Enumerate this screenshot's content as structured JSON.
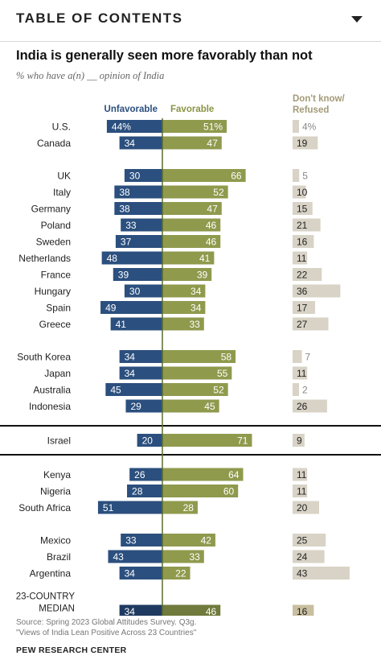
{
  "header": {
    "toc_label": "TABLE OF CONTENTS",
    "toc_icon": "caret-down-icon"
  },
  "chart_data": {
    "type": "bar",
    "title": "India is generally seen more favorably than not",
    "subtitle": "% who have a(n) __ opinion of India",
    "series": [
      {
        "name": "Unfavorable",
        "color": "#2b4f7e"
      },
      {
        "name": "Favorable",
        "color": "#8f9a4d"
      },
      {
        "name": "Don't know/ Refused",
        "color": "#d8d3c6"
      }
    ],
    "groups": [
      {
        "rows": [
          {
            "country": "U.S.",
            "unfavorable": 44,
            "favorable": 51,
            "dk": 4,
            "pct": true
          },
          {
            "country": "Canada",
            "unfavorable": 34,
            "favorable": 47,
            "dk": 19
          }
        ]
      },
      {
        "rows": [
          {
            "country": "UK",
            "unfavorable": 30,
            "favorable": 66,
            "dk": 5
          },
          {
            "country": "Italy",
            "unfavorable": 38,
            "favorable": 52,
            "dk": 10
          },
          {
            "country": "Germany",
            "unfavorable": 38,
            "favorable": 47,
            "dk": 15
          },
          {
            "country": "Poland",
            "unfavorable": 33,
            "favorable": 46,
            "dk": 21
          },
          {
            "country": "Sweden",
            "unfavorable": 37,
            "favorable": 46,
            "dk": 16
          },
          {
            "country": "Netherlands",
            "unfavorable": 48,
            "favorable": 41,
            "dk": 11
          },
          {
            "country": "France",
            "unfavorable": 39,
            "favorable": 39,
            "dk": 22
          },
          {
            "country": "Hungary",
            "unfavorable": 30,
            "favorable": 34,
            "dk": 36
          },
          {
            "country": "Spain",
            "unfavorable": 49,
            "favorable": 34,
            "dk": 17
          },
          {
            "country": "Greece",
            "unfavorable": 41,
            "favorable": 33,
            "dk": 27
          }
        ]
      },
      {
        "rows": [
          {
            "country": "South Korea",
            "unfavorable": 34,
            "favorable": 58,
            "dk": 7
          },
          {
            "country": "Japan",
            "unfavorable": 34,
            "favorable": 55,
            "dk": 11
          },
          {
            "country": "Australia",
            "unfavorable": 45,
            "favorable": 52,
            "dk": 2
          },
          {
            "country": "Indonesia",
            "unfavorable": 29,
            "favorable": 45,
            "dk": 26
          }
        ]
      },
      {
        "boxed": true,
        "rows": [
          {
            "country": "Israel",
            "unfavorable": 20,
            "favorable": 71,
            "dk": 9
          }
        ]
      },
      {
        "rows": [
          {
            "country": "Kenya",
            "unfavorable": 26,
            "favorable": 64,
            "dk": 11
          },
          {
            "country": "Nigeria",
            "unfavorable": 28,
            "favorable": 60,
            "dk": 11
          },
          {
            "country": "South Africa",
            "unfavorable": 51,
            "favorable": 28,
            "dk": 20
          }
        ]
      },
      {
        "rows": [
          {
            "country": "Mexico",
            "unfavorable": 33,
            "favorable": 42,
            "dk": 25
          },
          {
            "country": "Brazil",
            "unfavorable": 43,
            "favorable": 33,
            "dk": 24
          },
          {
            "country": "Argentina",
            "unfavorable": 34,
            "favorable": 22,
            "dk": 43
          }
        ]
      },
      {
        "median": true,
        "rows": [
          {
            "country": "23-COUNTRY MEDIAN",
            "unfavorable": 34,
            "favorable": 46,
            "dk": 16
          }
        ]
      }
    ]
  },
  "source": "Source: Spring 2023 Global Attitudes Survey. Q3g.",
  "source_report": "\"Views of India Lean Positive Across 23 Countries\"",
  "brand": "PEW RESEARCH CENTER"
}
